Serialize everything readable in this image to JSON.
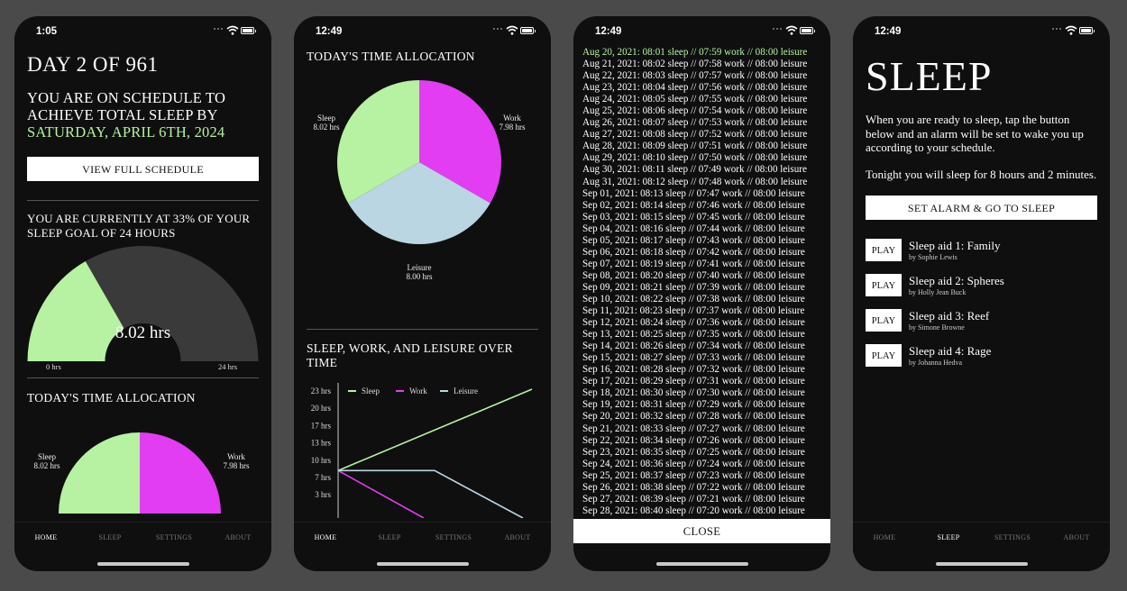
{
  "phones": [
    {
      "status_time": "1:05"
    },
    {
      "status_time": "12:49"
    },
    {
      "status_time": "12:49"
    },
    {
      "status_time": "12:49"
    }
  ],
  "tabs": [
    "HOME",
    "SLEEP",
    "SETTINGS",
    "ABOUT"
  ],
  "home": {
    "day": "DAY 2 OF 961",
    "schedule_text": "YOU ARE ON SCHEDULE TO ACHIEVE TOTAL SLEEP BY",
    "target_date": "SATURDAY, APRIL 6TH, 2024",
    "view_button": "VIEW FULL SCHEDULE",
    "progress_text": "YOU ARE CURRENTLY AT 33% OF YOUR SLEEP GOAL OF 24 HOURS",
    "gauge_value": "8.02 hrs",
    "gauge_fraction": 0.334,
    "gauge_min": "0 hrs",
    "gauge_max": "24 hrs",
    "allocation_title": "TODAY'S TIME ALLOCATION"
  },
  "allocation": {
    "title": "TODAY'S TIME ALLOCATION",
    "slices": [
      {
        "name": "Sleep",
        "value": "8.02 hrs",
        "hours": 8.02,
        "color": "#b6f2a1"
      },
      {
        "name": "Work",
        "value": "7.98 hrs",
        "hours": 7.98,
        "color": "#e23df2"
      },
      {
        "name": "Leisure",
        "value": "8.00 hrs",
        "hours": 8.0,
        "color": "#b9d6e2"
      }
    ],
    "trend_title": "SLEEP, WORK, AND LEISURE OVER TIME"
  },
  "chart_data": {
    "type": "line",
    "title": "SLEEP, WORK, AND LEISURE OVER TIME",
    "y_ticks": [
      "23 hrs",
      "20 hrs",
      "17 hrs",
      "13 hrs",
      "10 hrs",
      "7 hrs",
      "3 hrs"
    ],
    "ylim": [
      0,
      23
    ],
    "series": [
      {
        "name": "Sleep",
        "color": "#b6f2a1"
      },
      {
        "name": "Work",
        "color": "#e23df2"
      },
      {
        "name": "Leisure",
        "color": "#b9d6e2"
      }
    ]
  },
  "log": {
    "entries": [
      "Aug 20, 2021: 08:01 sleep // 07:59 work // 08:00 leisure",
      "Aug 21, 2021: 08:02 sleep // 07:58 work // 08:00 leisure",
      "Aug 22, 2021: 08:03 sleep // 07:57 work // 08:00 leisure",
      "Aug 23, 2021: 08:04 sleep // 07:56 work // 08:00 leisure",
      "Aug 24, 2021: 08:05 sleep // 07:55 work // 08:00 leisure",
      "Aug 25, 2021: 08:06 sleep // 07:54 work // 08:00 leisure",
      "Aug 26, 2021: 08:07 sleep // 07:53 work // 08:00 leisure",
      "Aug 27, 2021: 08:08 sleep // 07:52 work // 08:00 leisure",
      "Aug 28, 2021: 08:09 sleep // 07:51 work // 08:00 leisure",
      "Aug 29, 2021: 08:10 sleep // 07:50 work // 08:00 leisure",
      "Aug 30, 2021: 08:11 sleep // 07:49 work // 08:00 leisure",
      "Aug 31, 2021: 08:12 sleep // 07:48 work // 08:00 leisure",
      "Sep 01, 2021: 08:13 sleep // 07:47 work // 08:00 leisure",
      "Sep 02, 2021: 08:14 sleep // 07:46 work // 08:00 leisure",
      "Sep 03, 2021: 08:15 sleep // 07:45 work // 08:00 leisure",
      "Sep 04, 2021: 08:16 sleep // 07:44 work // 08:00 leisure",
      "Sep 05, 2021: 08:17 sleep // 07:43 work // 08:00 leisure",
      "Sep 06, 2021: 08:18 sleep // 07:42 work // 08:00 leisure",
      "Sep 07, 2021: 08:19 sleep // 07:41 work // 08:00 leisure",
      "Sep 08, 2021: 08:20 sleep // 07:40 work // 08:00 leisure",
      "Sep 09, 2021: 08:21 sleep // 07:39 work // 08:00 leisure",
      "Sep 10, 2021: 08:22 sleep // 07:38 work // 08:00 leisure",
      "Sep 11, 2021: 08:23 sleep // 07:37 work // 08:00 leisure",
      "Sep 12, 2021: 08:24 sleep // 07:36 work // 08:00 leisure",
      "Sep 13, 2021: 08:25 sleep // 07:35 work // 08:00 leisure",
      "Sep 14, 2021: 08:26 sleep // 07:34 work // 08:00 leisure",
      "Sep 15, 2021: 08:27 sleep // 07:33 work // 08:00 leisure",
      "Sep 16, 2021: 08:28 sleep // 07:32 work // 08:00 leisure",
      "Sep 17, 2021: 08:29 sleep // 07:31 work // 08:00 leisure",
      "Sep 18, 2021: 08:30 sleep // 07:30 work // 08:00 leisure",
      "Sep 19, 2021: 08:31 sleep // 07:29 work // 08:00 leisure",
      "Sep 20, 2021: 08:32 sleep // 07:28 work // 08:00 leisure",
      "Sep 21, 2021: 08:33 sleep // 07:27 work // 08:00 leisure",
      "Sep 22, 2021: 08:34 sleep // 07:26 work // 08:00 leisure",
      "Sep 23, 2021: 08:35 sleep // 07:25 work // 08:00 leisure",
      "Sep 24, 2021: 08:36 sleep // 07:24 work // 08:00 leisure",
      "Sep 25, 2021: 08:37 sleep // 07:23 work // 08:00 leisure",
      "Sep 26, 2021: 08:38 sleep // 07:22 work // 08:00 leisure",
      "Sep 27, 2021: 08:39 sleep // 07:21 work // 08:00 leisure",
      "Sep 28, 2021: 08:40 sleep // 07:20 work // 08:00 leisure"
    ],
    "close_button": "CLOSE"
  },
  "sleep": {
    "title": "SLEEP",
    "instructions": "When you are ready to sleep, tap the button below and an alarm will be set to wake you up according to your schedule.",
    "tonight": "Tonight you will sleep for 8 hours and 2 minutes.",
    "alarm_button": "SET ALARM & GO TO SLEEP",
    "play_label": "PLAY",
    "aids": [
      {
        "title": "Sleep aid 1: Family",
        "author": "by Sophie Lewis"
      },
      {
        "title": "Sleep aid 2: Spheres",
        "author": "by Holly Jean Buck"
      },
      {
        "title": "Sleep aid 3: Reef",
        "author": "by Simone Browne"
      },
      {
        "title": "Sleep aid 4: Rage",
        "author": "by Johanna Hedva"
      }
    ]
  }
}
